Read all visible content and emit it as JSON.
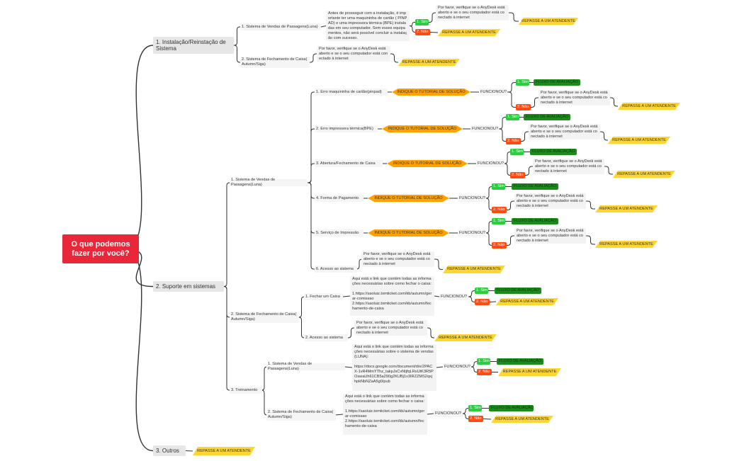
{
  "root": {
    "title": "O que podemos fazer por você?"
  },
  "labels": {
    "sim": "1. Sim",
    "nao": "2. Não",
    "repasse": "REPASSE A UM ATENDENTE",
    "fluxo": "FLUXO DE AVALIAÇÃO",
    "tutorial": "INDIQUE O TUTORIAL DE SOLUÇÃO",
    "funcionou": "FUNCIONOU?"
  },
  "notes": {
    "anydesk": "Por favor, verifique se o AnyDesk está aberto e se o seu computador está conectado à internet",
    "instalacao_luna": "Antes de prosseguir com a instalação, é importante ter uma maquininha de cartão ( PINPAD) e uma impressora térmica (BPE) instaladas em seu computador. Sem esses equipamentos, não será possível concluir a instalação com sucesso.",
    "link_caixa": "Aqui está o link que contém todas as informações necessárias sobre como fechar o caixa:\n\n1.https://saoluiz.tomticket.com/kb/autumn/gerar-comissao\n2.https://saoluiz.tomticket.com/kb/autumn/fechamento-de-caixa",
    "link_luna": "Aqui está o link que contém todas as informações necessárias sobre o sistema de vendas (LUNA):\n\nhttps://docs.google.com/document/d/e/2PACX-1vR4MmYThz_takpJxCvNtjfqLRsUtK3R5POswaUh61CB5a290g2KUBj1v3IRZZMS2qxjhpkNbNZaA5g0/pub"
  },
  "branches": [
    {
      "label": "1. Instalação/Reinstação de Sistema",
      "children": [
        {
          "label": "1. Sistema de Vendas de Passagens(Luna)"
        },
        {
          "label": "2. Sistema de Fechamento de Caixa( Autumn/Siga)"
        }
      ]
    },
    {
      "label": "2. Suporte em sistemas",
      "children": [
        {
          "label": "1. Sistema de Vendas de Passagens(Luna)",
          "children": [
            {
              "label": "1. Erro maquininha de cartão(pinpad)"
            },
            {
              "label": "2. Erro impressora térmica(BPE)"
            },
            {
              "label": "3. Abertura/Fechamento de Caixa"
            },
            {
              "label": "4. Forma de Pagamento"
            },
            {
              "label": "5. Serviço de Impressão"
            },
            {
              "label": "6. Acesso ao sistema"
            }
          ]
        },
        {
          "label": "2. Sistema de Fechamento de Caixa( Autumn/Siga)",
          "children": [
            {
              "label": "1. Fechar um Caixa"
            },
            {
              "label": "2. Acesso ao sistema"
            }
          ]
        },
        {
          "label": "3. Treinamento",
          "children": [
            {
              "label": "1. Sistema de Vendas de Passagens(Luna)"
            },
            {
              "label": "2. Sistema de Fechamento de Caixa( Autumn/Siga)"
            }
          ]
        }
      ]
    },
    {
      "label": "3. Outros"
    }
  ],
  "colors": {
    "root": "#e8283a",
    "sim": "#2ecc40",
    "nao": "#ff4a12",
    "fluxo": "#1c8a1c",
    "repasse": "#ffd531",
    "tutorial": "#ffa200"
  }
}
